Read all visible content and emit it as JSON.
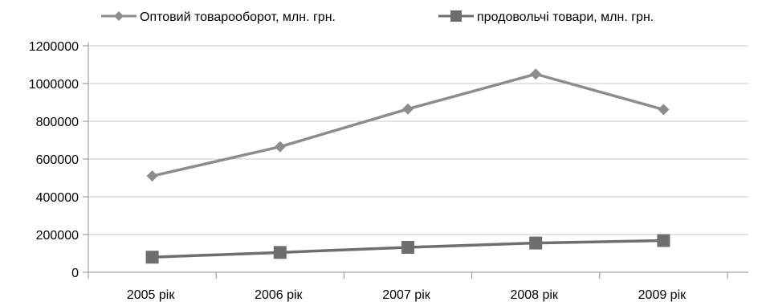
{
  "chart_data": {
    "type": "line",
    "title": "",
    "xlabel": "",
    "ylabel": "",
    "categories": [
      "2005 рік",
      "2006 рік",
      "2007 рік",
      "2008 рік",
      "2009 рік"
    ],
    "ylim": [
      0,
      1200000
    ],
    "yticks": [
      "0",
      "200000",
      "400000",
      "600000",
      "800000",
      "1000000",
      "1200000"
    ],
    "grid": true,
    "legend_position": "top",
    "series": [
      {
        "name": "Оптовий товарооборот, млн. грн.",
        "marker": "diamond",
        "color": "#8c8c8c",
        "values": [
          510000,
          665000,
          865000,
          1050000,
          862000
        ]
      },
      {
        "name": "продовольчі товари, млн. грн.",
        "marker": "square",
        "color": "#6e6e6e",
        "values": [
          80000,
          105000,
          132000,
          155000,
          168000
        ]
      }
    ]
  }
}
